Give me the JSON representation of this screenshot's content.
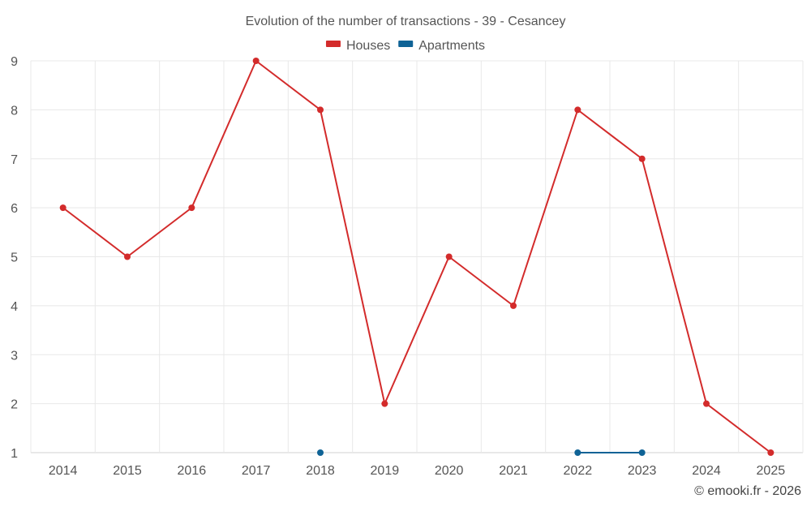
{
  "chart_data": {
    "type": "line",
    "title": "Evolution of the number of transactions - 39 - Cesancey",
    "xlabel": "",
    "ylabel": "",
    "categories": [
      "2014",
      "2015",
      "2016",
      "2017",
      "2018",
      "2019",
      "2020",
      "2021",
      "2022",
      "2023",
      "2024",
      "2025"
    ],
    "ylim": [
      1,
      9
    ],
    "yticks": [
      "1",
      "2",
      "3",
      "4",
      "5",
      "6",
      "7",
      "8",
      "9"
    ],
    "grid": true,
    "legend_position": "top-center",
    "series": [
      {
        "name": "Houses",
        "color": "#d32b2b",
        "values": [
          6,
          5,
          6,
          9,
          8,
          2,
          5,
          4,
          8,
          7,
          2,
          1
        ]
      },
      {
        "name": "Apartments",
        "color": "#0f6396",
        "values": [
          null,
          null,
          null,
          null,
          1,
          null,
          null,
          null,
          1,
          1,
          null,
          null
        ]
      }
    ],
    "credit": "© emooki.fr - 2026"
  }
}
